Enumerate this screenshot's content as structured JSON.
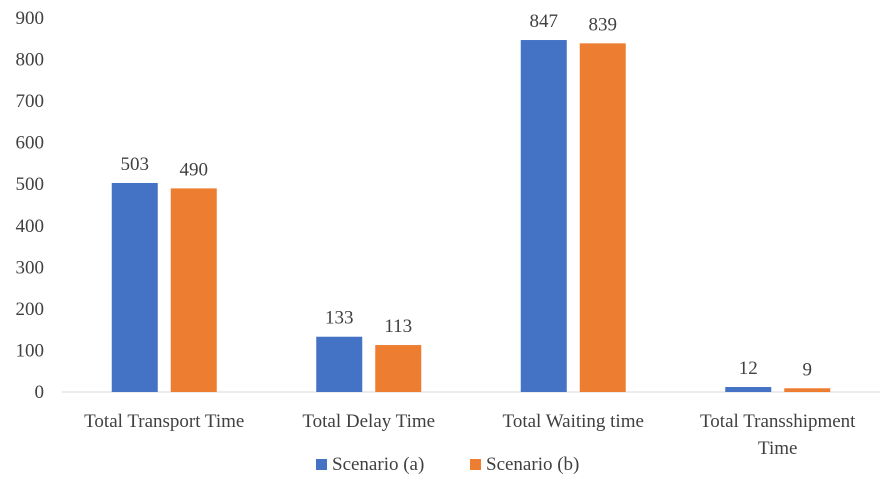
{
  "chart_data": {
    "type": "bar",
    "categories": [
      "Total Transport Time",
      "Total Delay Time",
      "Total Waiting time",
      "Total Transshipment Time"
    ],
    "category_lines": [
      [
        "Total Transport Time"
      ],
      [
        "Total Delay Time"
      ],
      [
        "Total Waiting time"
      ],
      [
        "Total Transshipment",
        "Time"
      ]
    ],
    "series": [
      {
        "name": "Scenario (a)",
        "values": [
          503,
          133,
          847,
          12
        ],
        "color": "#4472C4"
      },
      {
        "name": "Scenario (b)",
        "values": [
          490,
          113,
          839,
          9
        ],
        "color": "#ED7D31"
      }
    ],
    "ylim": [
      0,
      900
    ],
    "yticks": [
      0,
      100,
      200,
      300,
      400,
      500,
      600,
      700,
      800,
      900
    ],
    "grid": false,
    "legend_position": "bottom",
    "data_labels": true
  }
}
